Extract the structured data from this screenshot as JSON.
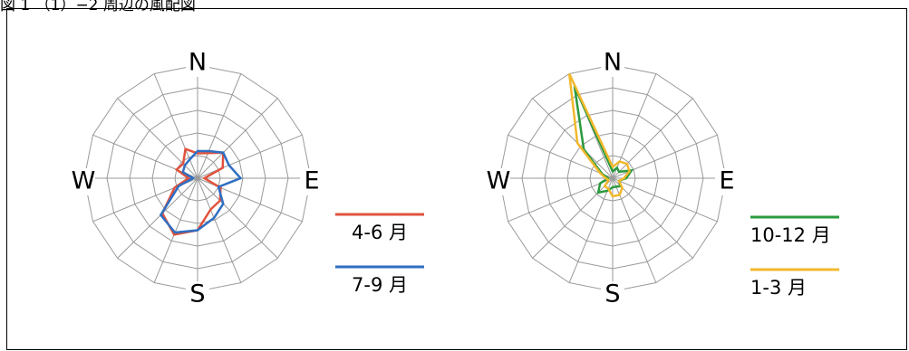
{
  "caption": "図 1 （1）−2 周辺の風配図",
  "colors": {
    "grid": "#9a9a9a",
    "red": "#e1523d",
    "blue": "#2f6ec2",
    "green": "#2b9a3e",
    "yellow": "#f2b82c"
  },
  "chart_data": [
    {
      "type": "radar",
      "directions": [
        "N",
        "NNE",
        "NE",
        "ENE",
        "E",
        "ESE",
        "SE",
        "SSE",
        "S",
        "SSW",
        "SW",
        "WSW",
        "W",
        "WNW",
        "NW",
        "NNW"
      ],
      "rmax": 5,
      "rings": 5,
      "axis_labels": {
        "N": "N",
        "E": "E",
        "S": "S",
        "W": "W"
      },
      "series": [
        {
          "name": "4-6 月",
          "color": "red",
          "values": [
            1.1,
            1.2,
            1.6,
            1.2,
            0.3,
            1.1,
            1.4,
            1.5,
            2.3,
            2.7,
            2.2,
            1.1,
            0.4,
            1.0,
            0.9,
            1.4
          ]
        },
        {
          "name": "7-9 月",
          "color": "blue",
          "values": [
            1.2,
            1.3,
            1.6,
            1.5,
            1.9,
            1.0,
            1.6,
            1.9,
            2.3,
            2.6,
            2.3,
            0.9,
            0.2,
            0.7,
            0.8,
            0.9
          ]
        }
      ]
    },
    {
      "type": "radar",
      "directions": [
        "N",
        "NNE",
        "NE",
        "ENE",
        "E",
        "ESE",
        "SE",
        "SSE",
        "S",
        "SSW",
        "SW",
        "WSW",
        "W",
        "WNW",
        "NW",
        "NNW"
      ],
      "rmax": 5,
      "rings": 5,
      "axis_labels": {
        "N": "N",
        "E": "E",
        "S": "S",
        "W": "W"
      },
      "series": [
        {
          "name": "10-12 月",
          "color": "green",
          "values": [
            0.3,
            0.5,
            0.4,
            0.9,
            0.6,
            0.3,
            0.5,
            0.4,
            0.4,
            0.6,
            0.9,
            0.6,
            0.2,
            0.5,
            1.8,
            4.4
          ]
        },
        {
          "name": "1-3 月",
          "color": "yellow",
          "values": [
            0.5,
            0.8,
            0.9,
            0.8,
            0.5,
            0.3,
            0.6,
            0.8,
            0.8,
            0.5,
            0.5,
            0.2,
            0.3,
            0.6,
            2.2,
            5.0
          ]
        }
      ]
    }
  ]
}
